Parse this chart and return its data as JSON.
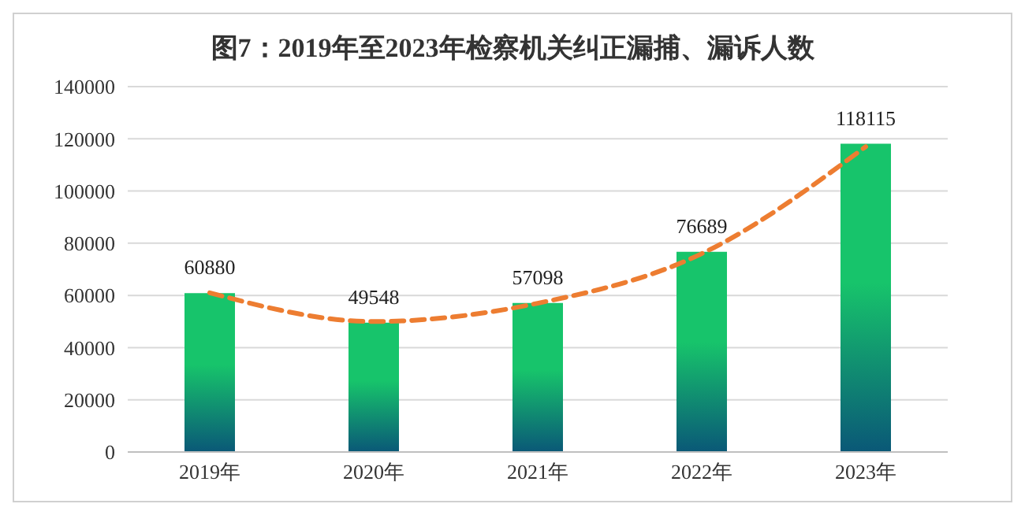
{
  "chart_data": {
    "type": "bar",
    "title": "图7：2019年至2023年检察机关纠正漏捕、漏诉人数",
    "categories": [
      "2019年",
      "2020年",
      "2021年",
      "2022年",
      "2023年"
    ],
    "series": [
      {
        "color": "#17c46b",
        "values": [
          60880,
          49548,
          57098,
          76689,
          118115
        ],
        "value_labels": [
          "60880",
          "49548",
          "57098",
          "76689",
          "118115"
        ]
      },
      {
        "type": "line",
        "color": "#ed7d31",
        "x": [
          "2019年",
          "2020年",
          "2021年",
          "2022年",
          "2023年"
        ],
        "values": [
          61000,
          50000,
          57000,
          76000,
          117000
        ],
        "line_style": "dashed",
        "marker": "none"
      }
    ],
    "ylim": [
      0,
      140000
    ],
    "yticks": [
      0,
      20000,
      40000,
      60000,
      80000,
      100000,
      120000,
      140000
    ],
    "grid": "y"
  }
}
